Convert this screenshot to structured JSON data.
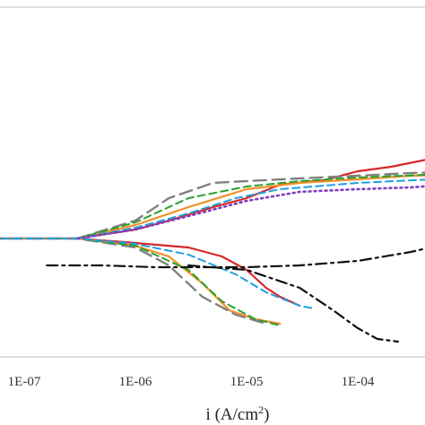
{
  "chart_data": {
    "type": "line",
    "x_scale": "log",
    "x_ticks": [
      "1E-07",
      "1E-06",
      "1E-05",
      "1E-04"
    ],
    "xlabel_main": "i (A/cm",
    "xlabel_sup": "2",
    "xlabel_close": ")",
    "ylabel": "",
    "grid": false,
    "series": [
      {
        "color": "#d62728",
        "dash": "solid",
        "points": [
          [
            5e-08,
            0
          ],
          [
            3e-07,
            0
          ],
          [
            1e-06,
            -5
          ],
          [
            3e-06,
            -10
          ],
          [
            6e-06,
            -20
          ],
          [
            1e-05,
            -35
          ],
          [
            1.5e-05,
            -55
          ],
          [
            2e-05,
            -65
          ],
          [
            3e-05,
            -75
          ]
        ]
      },
      {
        "color": "#d62728",
        "dash": "solid",
        "points": [
          [
            3e-07,
            0
          ],
          [
            1e-06,
            10
          ],
          [
            2e-06,
            20
          ],
          [
            5e-06,
            35
          ],
          [
            1e-05,
            45
          ],
          [
            2e-05,
            60
          ],
          [
            5e-05,
            65
          ],
          [
            0.0001,
            75
          ],
          [
            0.0002,
            80
          ],
          [
            0.0005,
            90
          ],
          [
            0.001,
            95
          ]
        ]
      },
      {
        "color": "#f0902a",
        "dash": "solid",
        "points": [
          [
            5e-08,
            0
          ],
          [
            3e-07,
            0
          ],
          [
            1e-06,
            -8
          ],
          [
            2e-06,
            -20
          ],
          [
            4e-06,
            -50
          ],
          [
            7e-06,
            -80
          ],
          [
            1.2e-05,
            -90
          ],
          [
            2e-05,
            -95
          ]
        ]
      },
      {
        "color": "#f0902a",
        "dash": "solid",
        "points": [
          [
            3e-07,
            0
          ],
          [
            1e-06,
            15
          ],
          [
            3e-06,
            35
          ],
          [
            1e-05,
            55
          ],
          [
            3e-05,
            62
          ],
          [
            0.0001,
            66
          ],
          [
            0.0003,
            70
          ],
          [
            0.001,
            72
          ]
        ]
      },
      {
        "color": "#808080",
        "dash": "long",
        "points": [
          [
            5e-08,
            0
          ],
          [
            3e-07,
            0
          ],
          [
            1e-06,
            -10
          ],
          [
            2e-06,
            -30
          ],
          [
            4e-06,
            -65
          ],
          [
            8e-06,
            -85
          ],
          [
            1.5e-05,
            -95
          ]
        ]
      },
      {
        "color": "#808080",
        "dash": "long",
        "points": [
          [
            3e-07,
            0
          ],
          [
            1e-06,
            20
          ],
          [
            2e-06,
            45
          ],
          [
            5e-06,
            62
          ],
          [
            1e-05,
            64
          ],
          [
            3e-05,
            67
          ],
          [
            0.0001,
            70
          ],
          [
            0.0003,
            73
          ],
          [
            0.001,
            75
          ]
        ]
      },
      {
        "color": "#2ca02c",
        "dash": "dash",
        "points": [
          [
            5e-08,
            0
          ],
          [
            3e-07,
            0
          ],
          [
            1e-06,
            -8
          ],
          [
            3e-06,
            -35
          ],
          [
            6e-06,
            -70
          ],
          [
            1.2e-05,
            -90
          ],
          [
            2e-05,
            -97
          ]
        ]
      },
      {
        "color": "#2ca02c",
        "dash": "dash",
        "points": [
          [
            3e-07,
            0
          ],
          [
            1e-06,
            18
          ],
          [
            3e-06,
            45
          ],
          [
            1e-05,
            58
          ],
          [
            3e-05,
            64
          ],
          [
            0.0001,
            68
          ],
          [
            0.001,
            73
          ]
        ]
      },
      {
        "color": "#1f9fe0",
        "dash": "dash",
        "points": [
          [
            5e-08,
            0
          ],
          [
            3e-07,
            0
          ],
          [
            1e-06,
            -6
          ],
          [
            3e-06,
            -18
          ],
          [
            8e-06,
            -40
          ],
          [
            1.5e-05,
            -60
          ],
          [
            3e-05,
            -75
          ],
          [
            4e-05,
            -78
          ]
        ]
      },
      {
        "color": "#1f9fe0",
        "dash": "dash",
        "points": [
          [
            3e-07,
            0
          ],
          [
            1e-06,
            12
          ],
          [
            3e-06,
            28
          ],
          [
            8e-06,
            45
          ],
          [
            2e-05,
            55
          ],
          [
            0.0001,
            62
          ],
          [
            0.001,
            68
          ]
        ]
      },
      {
        "color": "#7f3fbf",
        "dash": "dot",
        "points": [
          [
            3e-07,
            0
          ],
          [
            1e-06,
            10
          ],
          [
            3e-06,
            25
          ],
          [
            1e-05,
            42
          ],
          [
            3e-05,
            52
          ],
          [
            0.0001,
            55
          ],
          [
            0.0003,
            57
          ],
          [
            0.001,
            62
          ]
        ]
      },
      {
        "color": "#111111",
        "dash": "dashdot",
        "points": [
          [
            1.6e-07,
            -30
          ],
          [
            5e-07,
            -30
          ],
          [
            1.5e-06,
            -32
          ],
          [
            5e-06,
            -32
          ],
          [
            1e-05,
            -32
          ],
          [
            3e-05,
            -30
          ],
          [
            0.0001,
            -25
          ],
          [
            0.0003,
            -15
          ],
          [
            0.001,
            0
          ]
        ]
      },
      {
        "color": "#111111",
        "dash": "dashdot",
        "points": [
          [
            3e-06,
            -30
          ],
          [
            1e-05,
            -35
          ],
          [
            3e-05,
            -55
          ],
          [
            6e-05,
            -80
          ],
          [
            0.0001,
            -100
          ],
          [
            0.00015,
            -112
          ],
          [
            0.00023,
            -115
          ]
        ]
      }
    ]
  }
}
